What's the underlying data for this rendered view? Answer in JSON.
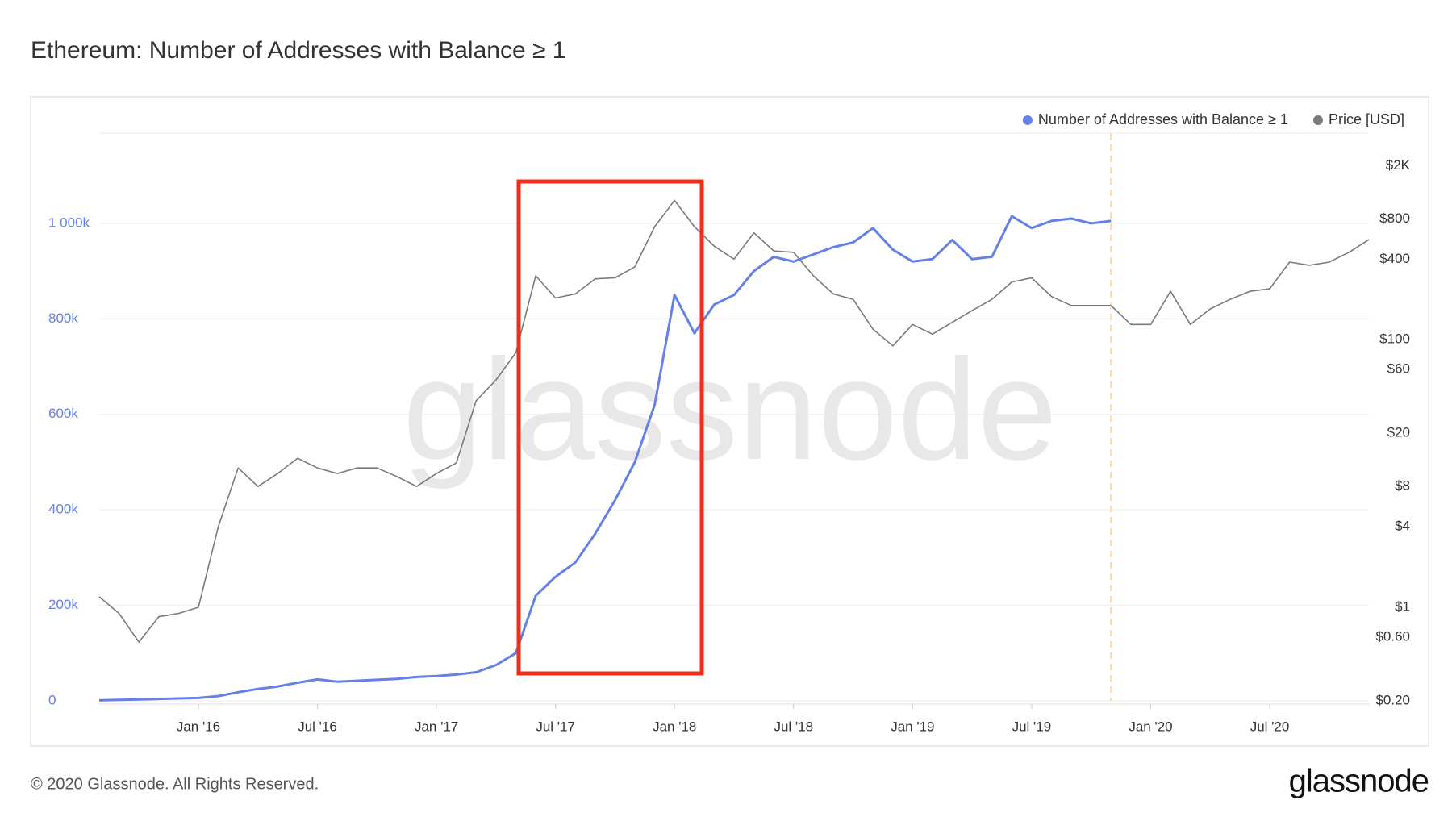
{
  "chart_data": {
    "type": "line",
    "title": "Ethereum: Number of Addresses with Balance ≥ 1",
    "x": [
      "2015-08",
      "2015-09",
      "2015-10",
      "2015-11",
      "2015-12",
      "2016-01",
      "2016-02",
      "2016-03",
      "2016-04",
      "2016-05",
      "2016-06",
      "2016-07",
      "2016-08",
      "2016-09",
      "2016-10",
      "2016-11",
      "2016-12",
      "2017-01",
      "2017-02",
      "2017-03",
      "2017-04",
      "2017-05",
      "2017-06",
      "2017-07",
      "2017-08",
      "2017-09",
      "2017-10",
      "2017-11",
      "2017-12",
      "2018-01",
      "2018-02",
      "2018-03",
      "2018-04",
      "2018-05",
      "2018-06",
      "2018-07",
      "2018-08",
      "2018-09",
      "2018-10",
      "2018-11",
      "2018-12",
      "2019-01",
      "2019-02",
      "2019-03",
      "2019-04",
      "2019-05",
      "2019-06",
      "2019-07",
      "2019-08",
      "2019-09",
      "2019-10",
      "2019-11",
      "2019-12",
      "2020-01",
      "2020-02",
      "2020-03",
      "2020-04",
      "2020-05",
      "2020-06",
      "2020-07",
      "2020-08",
      "2020-09",
      "2020-10",
      "2020-11",
      "2020-12"
    ],
    "series": [
      {
        "name": "Number of Addresses with Balance ≥ 1",
        "color": "#6580e6",
        "values": [
          1000,
          2000,
          3000,
          4000,
          5000,
          6000,
          10000,
          18000,
          25000,
          30000,
          38000,
          45000,
          40000,
          42000,
          44000,
          46000,
          50000,
          52000,
          55000,
          60000,
          75000,
          100000,
          220000,
          260000,
          290000,
          350000,
          420000,
          500000,
          620000,
          850000,
          770000,
          830000,
          850000,
          900000,
          930000,
          920000,
          935000,
          950000,
          960000,
          990000,
          945000,
          920000,
          925000,
          965000,
          925000,
          930000,
          1015000,
          990000,
          1005000,
          1010000,
          1000000,
          1005000,
          null,
          null,
          null,
          null,
          null,
          null,
          null,
          null,
          null,
          null,
          null,
          null,
          null
        ]
      },
      {
        "name": "Price [USD]",
        "color": "#7a7a7a",
        "axis": "y2",
        "values": [
          1.2,
          0.9,
          0.55,
          0.85,
          0.9,
          1,
          4,
          11,
          8,
          10,
          13,
          11,
          10,
          11,
          11,
          9.5,
          8,
          10,
          12,
          35,
          50,
          80,
          300,
          205,
          220,
          285,
          290,
          350,
          700,
          1100,
          700,
          500,
          400,
          630,
          460,
          450,
          300,
          220,
          200,
          120,
          90,
          130,
          110,
          135,
          165,
          200,
          270,
          290,
          210,
          180,
          180,
          180,
          130,
          130,
          230,
          130,
          170,
          200,
          230,
          240,
          380,
          360,
          380,
          450,
          560
        ]
      }
    ],
    "xlim": [
      "2015-08",
      "2020-12"
    ],
    "xticks": [
      {
        "value": "2016-01",
        "label": "Jan '16"
      },
      {
        "value": "2016-07",
        "label": "Jul '16"
      },
      {
        "value": "2017-01",
        "label": "Jan '17"
      },
      {
        "value": "2017-07",
        "label": "Jul '17"
      },
      {
        "value": "2018-01",
        "label": "Jan '18"
      },
      {
        "value": "2018-07",
        "label": "Jul '18"
      },
      {
        "value": "2019-01",
        "label": "Jan '19"
      },
      {
        "value": "2019-07",
        "label": "Jul '19"
      },
      {
        "value": "2020-01",
        "label": "Jan '20"
      },
      {
        "value": "2020-07",
        "label": "Jul '20"
      }
    ],
    "ylim": [
      0,
      1189000
    ],
    "yticks": [
      0,
      {
        "value": 200000,
        "label": "200k"
      },
      {
        "value": 400000,
        "label": "400k"
      },
      {
        "value": 600000,
        "label": "600k"
      },
      {
        "value": 800000,
        "label": "800k"
      },
      {
        "value": 1000000,
        "label": "1 000k"
      }
    ],
    "y2lim": [
      0.2,
      3500
    ],
    "y2scale": "log",
    "y2ticks": [
      {
        "value": 0.2,
        "label": "$0.20"
      },
      {
        "value": 0.6,
        "label": "$0.60"
      },
      {
        "value": 1,
        "label": "$1"
      },
      {
        "value": 4,
        "label": "$4"
      },
      {
        "value": 8,
        "label": "$8"
      },
      {
        "value": 20,
        "label": "$20"
      },
      {
        "value": 60,
        "label": "$60"
      },
      {
        "value": 100,
        "label": "$100"
      },
      {
        "value": 400,
        "label": "$400"
      },
      {
        "value": 800,
        "label": "$800"
      },
      {
        "value": 2000,
        "label": "$2K"
      }
    ],
    "grid": true,
    "legend": "top-right"
  },
  "watermark": "glassnode",
  "footer": "© 2020 Glassnode. All Rights Reserved.",
  "logo": "glassnode"
}
